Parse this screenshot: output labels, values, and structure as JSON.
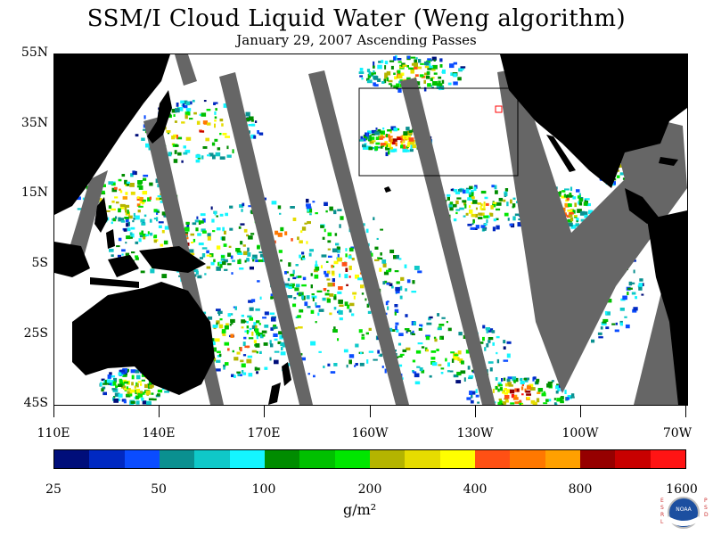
{
  "title": "SSM/I Cloud Liquid Water (Weng algorithm)",
  "subtitle": "January 29, 2007  Ascending Passes",
  "lat_labels": [
    "55N",
    "35N",
    "15N",
    "5S",
    "25S",
    "45S"
  ],
  "lon_labels": [
    "110E",
    "140E",
    "170E",
    "160W",
    "130W",
    "100W",
    "70W"
  ],
  "colorbar": {
    "colors": [
      "#000e7a",
      "#0029c2",
      "#0a4cff",
      "#0a9090",
      "#0fc8c8",
      "#14f5ff",
      "#008c00",
      "#00c000",
      "#00e600",
      "#b4b400",
      "#e6dc00",
      "#ffff00",
      "#ff5014",
      "#ff7800",
      "#ffa000",
      "#960000",
      "#c80000",
      "#ff1414"
    ],
    "tick_labels": [
      "25",
      "50",
      "100",
      "200",
      "400",
      "800",
      "1600"
    ],
    "units": "g/m²"
  },
  "logo": {
    "left_letters": "ESRL",
    "right_letters": "PSD",
    "badge": "NOAA"
  },
  "map_colors": {
    "land": "#000000",
    "no_data": "#666666",
    "background": "#ffffff"
  }
}
